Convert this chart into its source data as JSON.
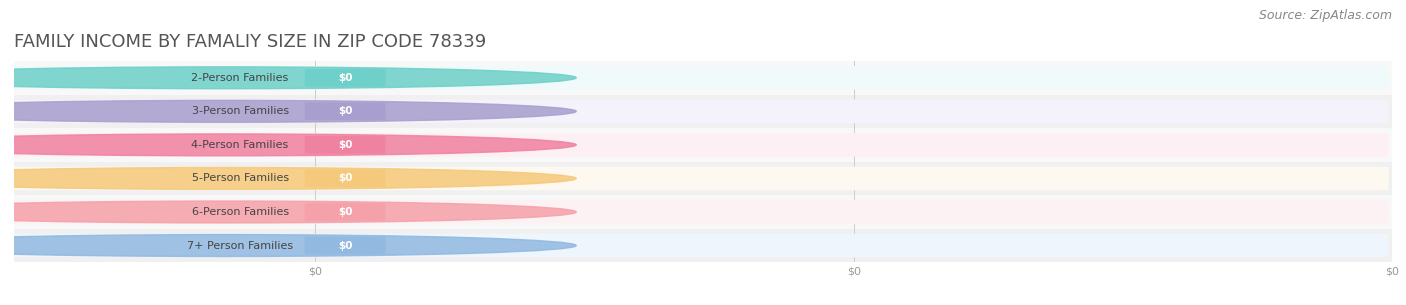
{
  "title": "FAMILY INCOME BY FAMALIY SIZE IN ZIP CODE 78339",
  "source": "Source: ZipAtlas.com",
  "categories": [
    "2-Person Families",
    "3-Person Families",
    "4-Person Families",
    "5-Person Families",
    "6-Person Families",
    "7+ Person Families"
  ],
  "values": [
    0,
    0,
    0,
    0,
    0,
    0
  ],
  "bar_colors": [
    "#6dcfc8",
    "#a89ece",
    "#f080a0",
    "#f5c87a",
    "#f5a0a8",
    "#90b8e0"
  ],
  "bar_bg_colors": [
    "#f0fafa",
    "#f4f2fb",
    "#fdf0f4",
    "#fef9f0",
    "#fdf2f3",
    "#eef5fc"
  ],
  "row_bg_colors": [
    "#f0f0f0",
    "#f8f8f8"
  ],
  "title_fontsize": 13,
  "title_color": "#555555",
  "source_fontsize": 9,
  "source_color": "#888888",
  "bar_height": 0.68,
  "background_color": "#ffffff",
  "max_value": 1,
  "xtick_labels": [
    "$0",
    "$0",
    "$0"
  ],
  "xtick_positions": [
    0.0,
    0.5,
    1.0
  ]
}
